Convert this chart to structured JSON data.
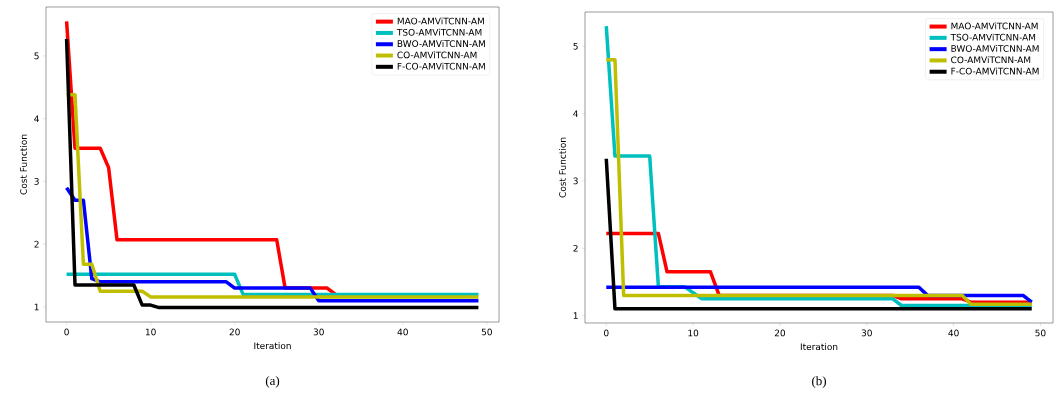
{
  "chart_data": [
    {
      "type": "line",
      "xlabel": "Iteration",
      "ylabel": "Cost Function",
      "xlim": [
        -2.45,
        51.45
      ],
      "ylim": [
        0.76,
        5.78
      ],
      "xticks": [
        0,
        10,
        20,
        30,
        40,
        50
      ],
      "yticks": [
        1,
        2,
        3,
        4,
        5
      ],
      "legend": "top right",
      "annotations": [
        "(a)"
      ],
      "series": [
        {
          "name": "MAO-AMViTCNN-AM",
          "color": "#ff0000",
          "x": [
            0,
            1,
            4,
            5,
            6,
            25,
            26,
            31,
            32
          ],
          "values": [
            5.55,
            3.53,
            3.53,
            3.22,
            2.07,
            2.07,
            1.3,
            1.3,
            1.2
          ]
        },
        {
          "name": "TSO-AMViTCNN-AM",
          "color": "#00bfbf",
          "x": [
            0,
            20,
            21,
            49
          ],
          "values": [
            1.52,
            1.52,
            1.2,
            1.2
          ]
        },
        {
          "name": "BWO-AMViTCNN-AM",
          "color": "#0000ff",
          "x": [
            0,
            1,
            2,
            3,
            4,
            19,
            20,
            29,
            30,
            49
          ],
          "values": [
            2.9,
            2.7,
            2.7,
            1.45,
            1.4,
            1.4,
            1.3,
            1.3,
            1.1,
            1.1
          ]
        },
        {
          "name": "CO-AMViTCNN-AM",
          "color": "#bfbf00",
          "x": [
            0,
            1,
            2,
            3,
            4,
            9,
            10,
            49
          ],
          "values": [
            4.38,
            4.38,
            1.68,
            1.68,
            1.25,
            1.25,
            1.16,
            1.16
          ]
        },
        {
          "name": "F-CO-AMViTCNN-AM",
          "color": "#000000",
          "x": [
            0,
            1,
            8,
            9,
            10,
            11,
            49
          ],
          "values": [
            5.27,
            1.35,
            1.35,
            1.03,
            1.03,
            0.99,
            0.99
          ]
        }
      ]
    },
    {
      "type": "line",
      "xlabel": "Iteration",
      "ylabel": "Cost Function",
      "xlim": [
        -2.45,
        51.45
      ],
      "ylim": [
        0.89,
        5.51
      ],
      "xticks": [
        0,
        10,
        20,
        30,
        40,
        50
      ],
      "yticks": [
        1,
        2,
        3,
        4,
        5
      ],
      "legend": "top right",
      "annotations": [
        "(b)"
      ],
      "series": [
        {
          "name": "MAO-AMViTCNN-AM",
          "color": "#ff0000",
          "x": [
            0,
            6,
            7,
            12,
            13,
            33,
            34,
            41,
            42,
            49
          ],
          "values": [
            2.22,
            2.22,
            1.65,
            1.65,
            1.3,
            1.3,
            1.25,
            1.25,
            1.2,
            1.2
          ]
        },
        {
          "name": "TSO-AMViTCNN-AM",
          "color": "#00bfbf",
          "x": [
            0,
            1,
            5,
            6,
            9,
            11,
            33,
            34,
            49
          ],
          "values": [
            5.3,
            3.37,
            3.37,
            1.43,
            1.43,
            1.25,
            1.25,
            1.15,
            1.15
          ]
        },
        {
          "name": "BWO-AMViTCNN-AM",
          "color": "#0000ff",
          "x": [
            0,
            36,
            37,
            48,
            49
          ],
          "values": [
            1.42,
            1.42,
            1.3,
            1.3,
            1.2
          ]
        },
        {
          "name": "CO-AMViTCNN-AM",
          "color": "#bfbf00",
          "x": [
            0,
            1,
            2,
            41,
            42,
            49
          ],
          "values": [
            4.8,
            4.8,
            1.3,
            1.3,
            1.17,
            1.17
          ]
        },
        {
          "name": "F-CO-AMViTCNN-AM",
          "color": "#000000",
          "x": [
            0,
            1,
            49
          ],
          "values": [
            3.33,
            1.1,
            1.1
          ]
        }
      ]
    }
  ]
}
